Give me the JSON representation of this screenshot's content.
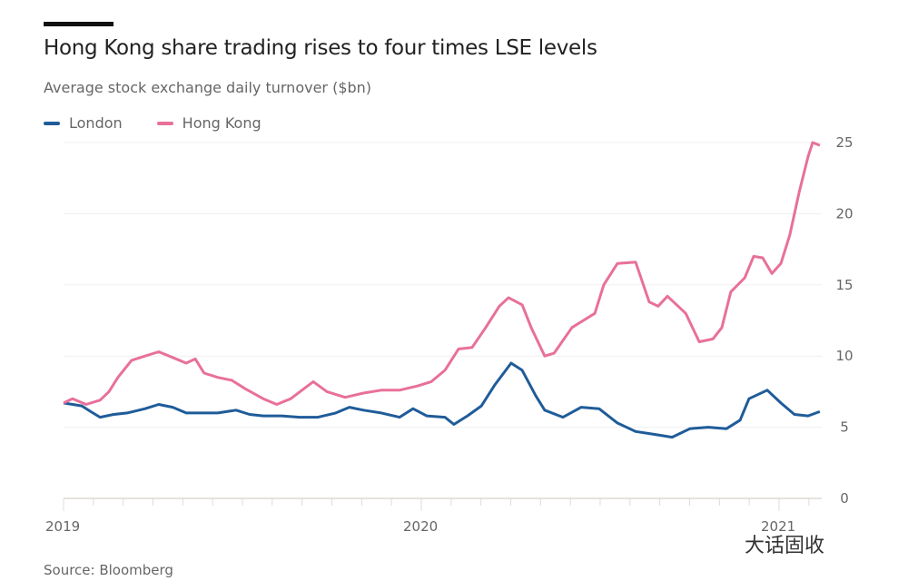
{
  "chart_data": {
    "type": "line",
    "title": "Hong Kong share trading rises to four times LSE levels",
    "subtitle": "Average stock exchange daily turnover ($bn)",
    "source": "Source: Bloomberg",
    "x_ticks": [
      "2019",
      "2020",
      "2021"
    ],
    "y_ticks": [
      0,
      5,
      10,
      15,
      20,
      25
    ],
    "xlim": [
      2019,
      2021.13
    ],
    "ylim": [
      0,
      25
    ],
    "grid": true,
    "legend_position": "top-left",
    "series": [
      {
        "name": "London",
        "color": "#1f5c99",
        "x": [
          2019.0,
          2019.051,
          2019.076,
          2019.102,
          2019.14,
          2019.178,
          2019.228,
          2019.266,
          2019.305,
          2019.343,
          2019.381,
          2019.431,
          2019.482,
          2019.52,
          2019.558,
          2019.609,
          2019.66,
          2019.711,
          2019.761,
          2019.799,
          2019.838,
          2019.888,
          2019.939,
          2019.977,
          2020.015,
          2020.066,
          2020.091,
          2020.129,
          2020.168,
          2020.206,
          2020.251,
          2020.282,
          2020.32,
          2020.345,
          2020.396,
          2020.447,
          2020.497,
          2020.548,
          2020.599,
          2020.65,
          2020.701,
          2020.751,
          2020.802,
          2020.853,
          2020.891,
          2020.916,
          2020.967,
          2021.005,
          2021.043,
          2021.081,
          2021.114
        ],
        "y": [
          6.7,
          6.5,
          6.1,
          5.7,
          5.9,
          6.0,
          6.3,
          6.6,
          6.4,
          6.0,
          6.0,
          6.0,
          6.2,
          5.9,
          5.8,
          5.8,
          5.7,
          5.7,
          6.0,
          6.4,
          6.2,
          6.0,
          5.7,
          6.3,
          5.8,
          5.7,
          5.2,
          5.8,
          6.5,
          8.0,
          9.5,
          9.0,
          7.2,
          6.2,
          5.7,
          6.4,
          6.3,
          5.3,
          4.7,
          4.5,
          4.3,
          4.9,
          5.0,
          4.9,
          5.5,
          7.0,
          7.6,
          6.7,
          5.9,
          5.8,
          6.1
        ]
      },
      {
        "name": "Hong Kong",
        "color": "#e8709a",
        "x": [
          2019.0,
          2019.025,
          2019.063,
          2019.102,
          2019.127,
          2019.152,
          2019.19,
          2019.228,
          2019.266,
          2019.305,
          2019.343,
          2019.368,
          2019.393,
          2019.431,
          2019.47,
          2019.508,
          2019.558,
          2019.596,
          2019.635,
          2019.698,
          2019.736,
          2019.787,
          2019.838,
          2019.888,
          2019.939,
          2019.99,
          2020.028,
          2020.066,
          2020.104,
          2020.142,
          2020.18,
          2020.218,
          2020.244,
          2020.282,
          2020.307,
          2020.345,
          2020.371,
          2020.421,
          2020.485,
          2020.51,
          2020.548,
          2020.599,
          2020.637,
          2020.662,
          2020.688,
          2020.739,
          2020.777,
          2020.815,
          2020.84,
          2020.865,
          2020.904,
          2020.929,
          2020.954,
          2020.98,
          2021.005,
          2021.03,
          2021.056,
          2021.081,
          2021.094,
          2021.114
        ],
        "y": [
          6.7,
          7.0,
          6.6,
          6.9,
          7.5,
          8.5,
          9.7,
          10.0,
          10.3,
          9.9,
          9.5,
          9.8,
          8.8,
          8.5,
          8.3,
          7.7,
          7.0,
          6.6,
          7.0,
          8.2,
          7.5,
          7.1,
          7.4,
          7.6,
          7.6,
          7.9,
          8.2,
          9.0,
          10.5,
          10.6,
          12.0,
          13.5,
          14.1,
          13.6,
          12.0,
          10.0,
          10.2,
          12.0,
          13.0,
          15.0,
          16.5,
          16.6,
          13.8,
          13.5,
          14.2,
          13.0,
          11.0,
          11.2,
          12.0,
          14.5,
          15.5,
          17.0,
          16.9,
          15.8,
          16.5,
          18.5,
          21.5,
          24.0,
          25.0,
          24.8
        ]
      }
    ]
  },
  "watermark": "大话固收"
}
